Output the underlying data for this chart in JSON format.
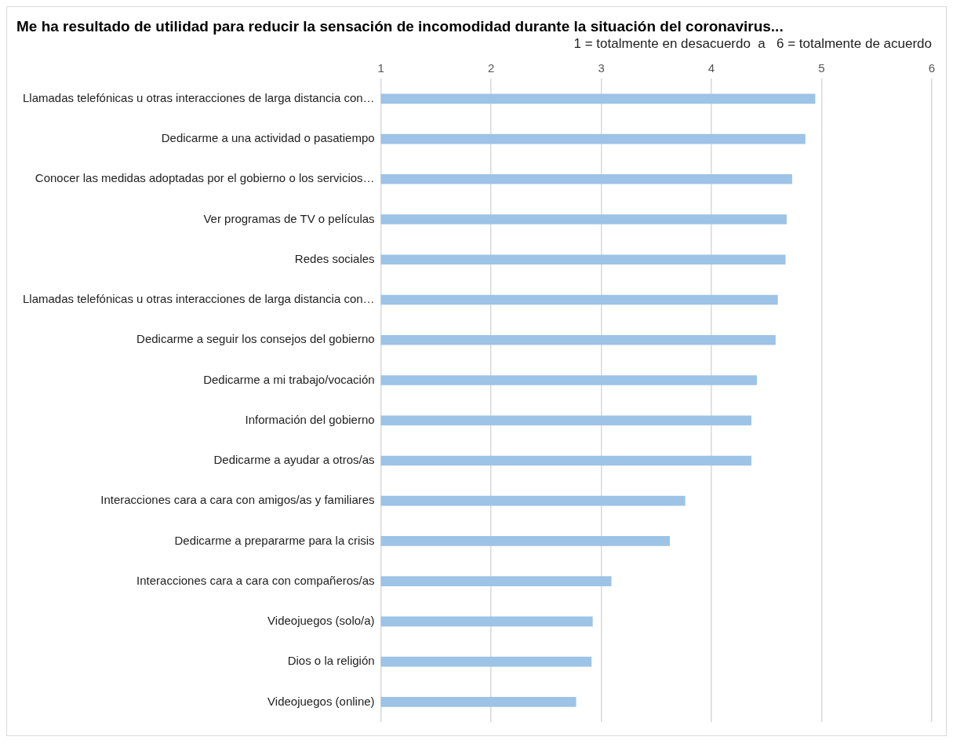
{
  "chart_data": {
    "type": "bar",
    "orientation": "horizontal",
    "title": "Me ha resultado de utilidad para reducir la sensación de incomodidad durante la situación del coronavirus...",
    "subtitle": "1 = totalmente en desacuerdo  a   6 = totalmente de acuerdo",
    "categories": [
      "Llamadas telefónicas u otras interacciones de larga distancia con…",
      "Dedicarme a una actividad o pasatiempo",
      "Conocer las medidas adoptadas por el gobierno o los servicios…",
      "Ver programas de TV o películas",
      "Redes sociales",
      "Llamadas telefónicas u otras interacciones de larga distancia con…",
      "Dedicarme a seguir los consejos del gobierno",
      "Dedicarme a mi trabajo/vocación",
      "Información del gobierno",
      "Dedicarme a ayudar a otros/as",
      "Interacciones cara a cara con amigos/as y familiares",
      "Dedicarme a prepararme para la crisis",
      "Interacciones cara a cara con compañeros/as",
      "Videojuegos (solo/a)",
      "Dios o la religión",
      "Videojuegos (online)"
    ],
    "values": [
      4.94,
      4.85,
      4.73,
      4.68,
      4.67,
      4.6,
      4.58,
      4.41,
      4.36,
      4.36,
      3.76,
      3.62,
      3.09,
      2.92,
      2.91,
      2.77
    ],
    "color": "#9dc3e6",
    "xlim": [
      1,
      6
    ],
    "xticks": [
      1,
      2,
      3,
      4,
      5,
      6
    ],
    "grid": "x",
    "legend": false
  }
}
